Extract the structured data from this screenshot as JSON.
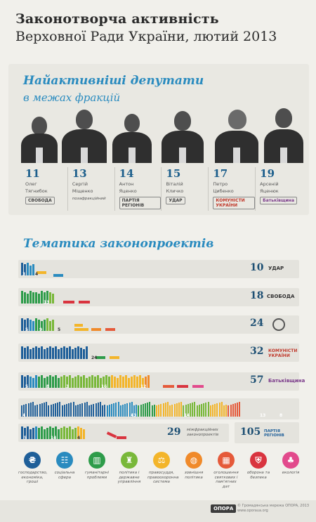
{
  "header": {
    "title_line1": "Законотворча  активність",
    "title_line2": "Верховної Ради України, лютий 2013"
  },
  "deputies_section": {
    "heading1": "Найактивніші депутати",
    "heading2": "в межах фракцій",
    "deputies": [
      {
        "count": "11",
        "first": "Олег",
        "last": "Тягнибок",
        "party": "СВОБОДА"
      },
      {
        "count": "13",
        "first": "Сергій",
        "last": "Міщенко",
        "party": "позафракційний"
      },
      {
        "count": "14",
        "first": "Антон",
        "last": "Яценко",
        "party": "ПАРТІЯ РЕГІОНІВ"
      },
      {
        "count": "15",
        "first": "Віталій",
        "last": "Кличко",
        "party": "УДАР"
      },
      {
        "count": "17",
        "first": "Петро",
        "last": "Цибенко",
        "party": "КОМУНІСТИ УКРАЇНИ"
      },
      {
        "count": "19",
        "first": "Арсеній",
        "last": "Яценюк",
        "party": "Батьківщина"
      }
    ]
  },
  "topics_section": {
    "heading": "Тематика законопроектів",
    "rows": [
      {
        "total": "10",
        "party": "УДАР",
        "labels": [
          "3",
          "4"
        ]
      },
      {
        "total": "18",
        "party": "СВОБОДА",
        "labels": [
          "13"
        ]
      },
      {
        "total": "24",
        "party": "",
        "labels": [
          "5",
          "9",
          "5"
        ]
      },
      {
        "total": "32",
        "party": "КОМУНІСТИ УКРАЇНИ",
        "labels": [
          "24"
        ]
      },
      {
        "total": "57",
        "party": "Батьківщина",
        "labels": [
          "5",
          "8",
          "3",
          "16",
          "12"
        ]
      },
      {
        "total": "",
        "party": "",
        "labels": [
          "4",
          "43",
          "14",
          "13",
          "8"
        ]
      },
      {
        "total": "29",
        "party": "",
        "labels": [
          "5",
          "14",
          "4"
        ],
        "note": "міжфракційних законопроектів"
      },
      {
        "total": "105",
        "party": "ПАРТІЯ РЕГІОНІВ"
      }
    ]
  },
  "legend": [
    {
      "label": "господарство, економіка, гроші",
      "color": "#1f5f99",
      "glyph": "₴",
      "icon": "hryvnia-icon"
    },
    {
      "label": "соціальна сфера",
      "color": "#2a8bbf",
      "glyph": "☷",
      "icon": "people-icon"
    },
    {
      "label": "гуманітарні проблеми",
      "color": "#2e9c4a",
      "glyph": "▥",
      "icon": "building-icon"
    },
    {
      "label": "політика і державне управління",
      "color": "#79b83a",
      "glyph": "♜",
      "icon": "podium-icon"
    },
    {
      "label": "правосуддя, правоохоронна система",
      "color": "#f3b52a",
      "glyph": "⚖",
      "icon": "gavel-icon"
    },
    {
      "label": "зовнішня політика",
      "color": "#f08a2a",
      "glyph": "◍",
      "icon": "globe-icon"
    },
    {
      "label": "оголошення святкових і пам'ятних дат",
      "color": "#e55a3a",
      "glyph": "▦",
      "icon": "calendar-icon"
    },
    {
      "label": "оборона та безпека",
      "color": "#d9343f",
      "glyph": "⛨",
      "icon": "shield-icon"
    },
    {
      "label": "екологія",
      "color": "#e24a8c",
      "glyph": "♣",
      "icon": "factory-icon"
    }
  ],
  "footer": {
    "brand": "ОПОРА",
    "note_line1": "© Громадянська мережа ОПОРА, 2013",
    "note_line2": "www.oporaua.org"
  }
}
